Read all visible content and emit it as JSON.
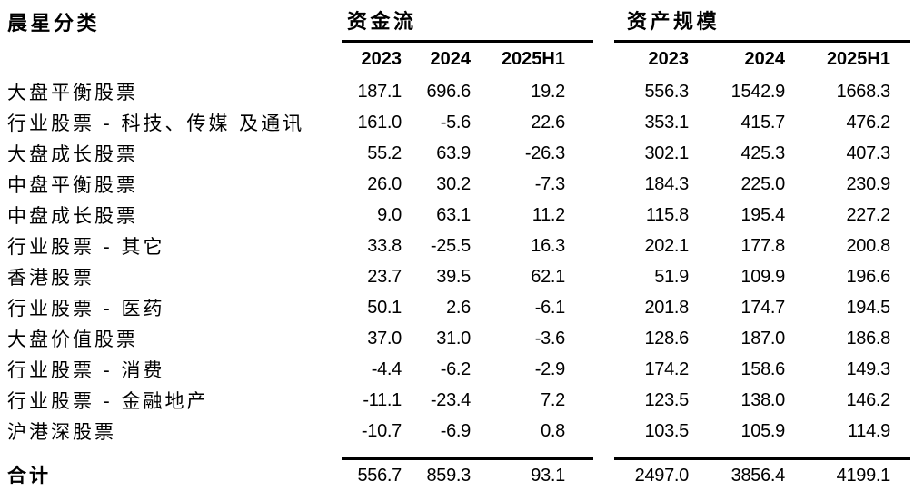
{
  "chart_data": {
    "type": "table",
    "corner_header": "晨星分类",
    "column_groups": [
      {
        "title": "资金流",
        "columns": [
          "2023",
          "2024",
          "2025H1"
        ]
      },
      {
        "title": "资产规模",
        "columns": [
          "2023",
          "2024",
          "2025H1"
        ]
      }
    ],
    "rows": [
      {
        "category": "大盘平衡股票",
        "flow": [
          "187.1",
          "696.6",
          "19.2"
        ],
        "assets": [
          "556.3",
          "1542.9",
          "1668.3"
        ]
      },
      {
        "category": "行业股票 - 科技、传媒 及通讯",
        "flow": [
          "161.0",
          "-5.6",
          "22.6"
        ],
        "assets": [
          "353.1",
          "415.7",
          "476.2"
        ]
      },
      {
        "category": "大盘成长股票",
        "flow": [
          "55.2",
          "63.9",
          "-26.3"
        ],
        "assets": [
          "302.1",
          "425.3",
          "407.3"
        ]
      },
      {
        "category": "中盘平衡股票",
        "flow": [
          "26.0",
          "30.2",
          "-7.3"
        ],
        "assets": [
          "184.3",
          "225.0",
          "230.9"
        ]
      },
      {
        "category": "中盘成长股票",
        "flow": [
          "9.0",
          "63.1",
          "11.2"
        ],
        "assets": [
          "115.8",
          "195.4",
          "227.2"
        ]
      },
      {
        "category": "行业股票 - 其它",
        "flow": [
          "33.8",
          "-25.5",
          "16.3"
        ],
        "assets": [
          "202.1",
          "177.8",
          "200.8"
        ]
      },
      {
        "category": "香港股票",
        "flow": [
          "23.7",
          "39.5",
          "62.1"
        ],
        "assets": [
          "51.9",
          "109.9",
          "196.6"
        ]
      },
      {
        "category": "行业股票 - 医药",
        "flow": [
          "50.1",
          "2.6",
          "-6.1"
        ],
        "assets": [
          "201.8",
          "174.7",
          "194.5"
        ]
      },
      {
        "category": "大盘价值股票",
        "flow": [
          "37.0",
          "31.0",
          "-3.6"
        ],
        "assets": [
          "128.6",
          "187.0",
          "186.8"
        ]
      },
      {
        "category": "行业股票 - 消费",
        "flow": [
          "-4.4",
          "-6.2",
          "-2.9"
        ],
        "assets": [
          "174.2",
          "158.6",
          "149.3"
        ]
      },
      {
        "category": "行业股票 - 金融地产",
        "flow": [
          "-11.1",
          "-23.4",
          "7.2"
        ],
        "assets": [
          "123.5",
          "138.0",
          "146.2"
        ]
      },
      {
        "category": "沪港深股票",
        "flow": [
          "-10.7",
          "-6.9",
          "0.8"
        ],
        "assets": [
          "103.5",
          "105.9",
          "114.9"
        ]
      }
    ],
    "total": {
      "category": "合计",
      "flow": [
        "556.7",
        "859.3",
        "93.1"
      ],
      "assets": [
        "2497.0",
        "3856.4",
        "4199.1"
      ]
    }
  }
}
